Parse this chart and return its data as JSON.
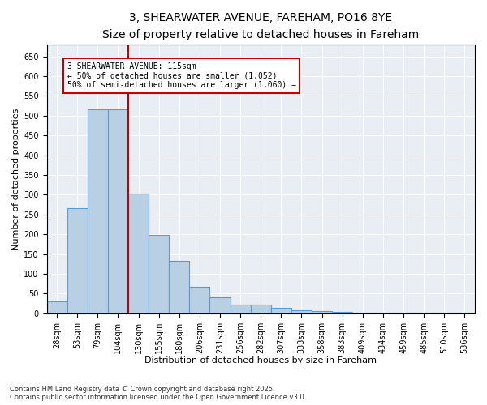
{
  "title": "3, SHEARWATER AVENUE, FAREHAM, PO16 8YE",
  "subtitle": "Size of property relative to detached houses in Fareham",
  "xlabel": "Distribution of detached houses by size in Fareham",
  "ylabel": "Number of detached properties",
  "categories": [
    "28sqm",
    "53sqm",
    "79sqm",
    "104sqm",
    "130sqm",
    "155sqm",
    "180sqm",
    "206sqm",
    "231sqm",
    "256sqm",
    "282sqm",
    "307sqm",
    "333sqm",
    "358sqm",
    "383sqm",
    "409sqm",
    "434sqm",
    "459sqm",
    "485sqm",
    "510sqm",
    "536sqm"
  ],
  "values": [
    30,
    265,
    515,
    515,
    303,
    198,
    133,
    68,
    40,
    22,
    22,
    13,
    7,
    5,
    3,
    1,
    1,
    1,
    1,
    1,
    1
  ],
  "bar_color": "#b8cfe4",
  "bar_edge_color": "#5b9bd5",
  "bar_width": 1.0,
  "vline_color": "#c00000",
  "annotation_title": "3 SHEARWATER AVENUE: 115sqm",
  "annotation_line1": "← 50% of detached houses are smaller (1,052)",
  "annotation_line2": "50% of semi-detached houses are larger (1,060) →",
  "annotation_box_color": "#c00000",
  "annotation_bg": "#ffffff",
  "ylim": [
    0,
    680
  ],
  "yticks": [
    0,
    50,
    100,
    150,
    200,
    250,
    300,
    350,
    400,
    450,
    500,
    550,
    600,
    650
  ],
  "bg_color": "#e8eef4",
  "footer_line1": "Contains HM Land Registry data © Crown copyright and database right 2025.",
  "footer_line2": "Contains public sector information licensed under the Open Government Licence v3.0.",
  "title_fontsize": 10,
  "subtitle_fontsize": 9,
  "tick_fontsize": 7,
  "label_fontsize": 8,
  "annotation_fontsize": 7,
  "footer_fontsize": 6
}
